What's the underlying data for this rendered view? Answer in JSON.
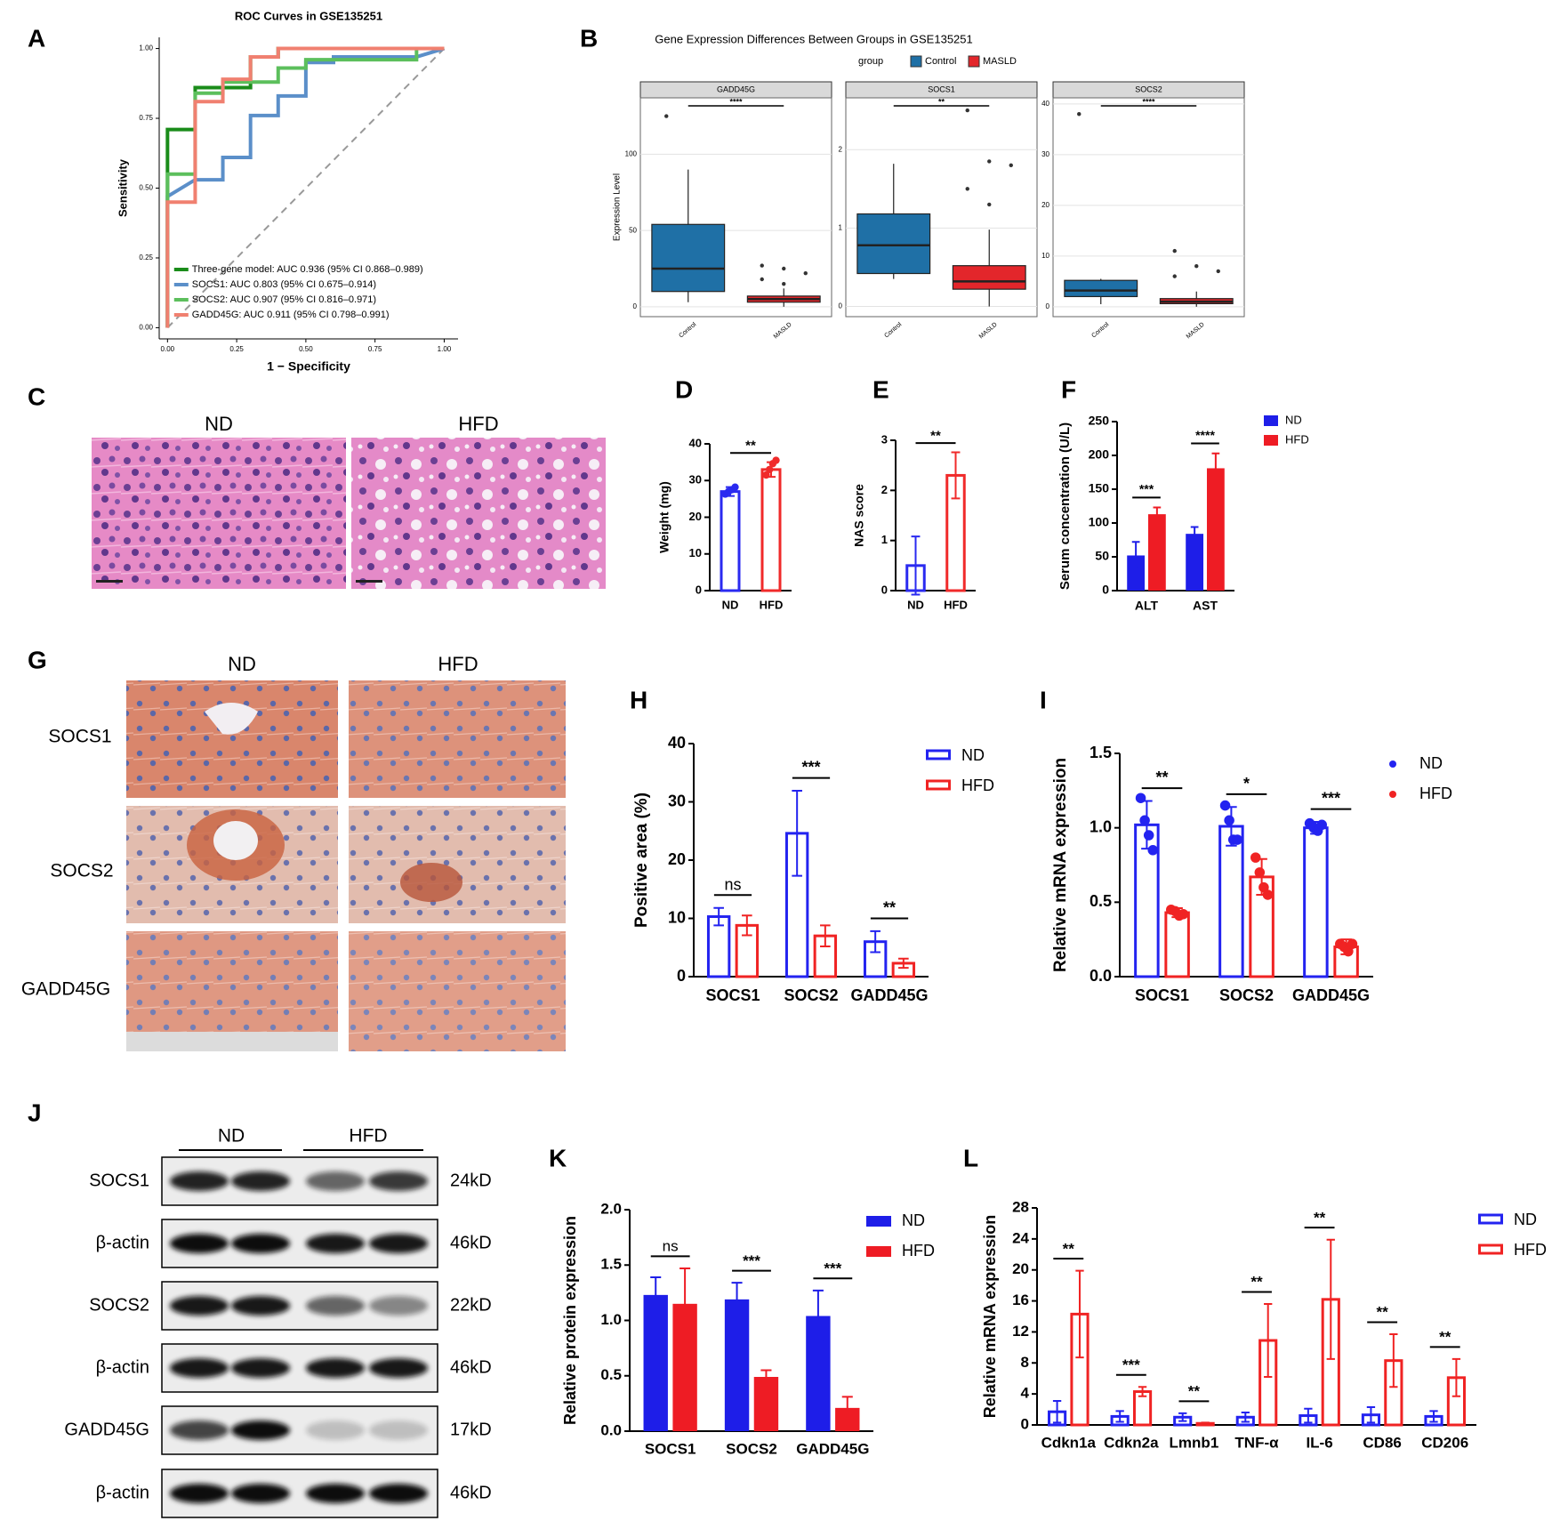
{
  "chart_data": [
    {
      "type": "line",
      "panel": "A",
      "title": "ROC Curves in GSE135251",
      "xlabel": "1 − Specificity",
      "ylabel": "Sensitivity",
      "xlim": [
        -0.03,
        1.05
      ],
      "ylim": [
        -0.04,
        1.04
      ],
      "xticks": [
        {
          "value": 0,
          "label": "0.00"
        },
        {
          "value": 0.25,
          "label": "0.25"
        },
        {
          "value": 0.5,
          "label": "0.50"
        },
        {
          "value": 0.75,
          "label": "0.75"
        },
        {
          "value": 1,
          "label": "1.00"
        }
      ],
      "yticks": [
        {
          "value": 0,
          "label": "0.00"
        },
        {
          "value": 0.25,
          "label": "0.25"
        },
        {
          "value": 0.5,
          "label": "0.50"
        },
        {
          "value": 0.75,
          "label": "0.75"
        },
        {
          "value": 1,
          "label": "1.00"
        }
      ],
      "diagonal": true,
      "legend": "lower right",
      "series": [
        {
          "name": "Three-gene model: AUC 0.936 (95% CI 0.868–0.989)",
          "color": "#1a8c1a",
          "x": [
            0,
            0,
            0.1,
            0.1,
            0.3,
            0.3,
            0.4,
            0.4,
            1
          ],
          "values": [
            0,
            0.71,
            0.71,
            0.86,
            0.86,
            0.97,
            0.97,
            1,
            1
          ]
        },
        {
          "name": "SOCS1: AUC 0.803 (95% CI 0.675–0.914)",
          "color": "#5b8fc9",
          "x": [
            0,
            0,
            0.1,
            0.2,
            0.2,
            0.3,
            0.3,
            0.4,
            0.4,
            0.5,
            0.5,
            0.6,
            0.6,
            0.9,
            1
          ],
          "values": [
            0,
            0.47,
            0.53,
            0.53,
            0.61,
            0.61,
            0.76,
            0.76,
            0.83,
            0.83,
            0.95,
            0.95,
            0.97,
            0.97,
            1
          ]
        },
        {
          "name": "SOCS2: AUC 0.907 (95% CI 0.816–0.971)",
          "color": "#5cbf5c",
          "x": [
            0,
            0,
            0.1,
            0.1,
            0.2,
            0.2,
            0.4,
            0.4,
            0.5,
            0.5,
            0.9,
            0.9,
            1
          ],
          "values": [
            0,
            0.55,
            0.55,
            0.84,
            0.84,
            0.88,
            0.88,
            0.93,
            0.93,
            0.96,
            0.96,
            1,
            1
          ]
        },
        {
          "name": "GADD45G: AUC 0.911 (95% CI 0.798–0.991)",
          "color": "#f08070",
          "x": [
            0,
            0,
            0.1,
            0.1,
            0.2,
            0.2,
            0.3,
            0.3,
            0.4,
            0.4,
            1
          ],
          "values": [
            0,
            0.45,
            0.45,
            0.81,
            0.81,
            0.89,
            0.89,
            0.97,
            0.97,
            1,
            1
          ]
        }
      ]
    },
    {
      "type": "box",
      "panel": "B",
      "title": "Gene Expression Differences Between Groups in GSE135251",
      "ylabel": "Expression Level",
      "legend_title": "group",
      "groups": [
        {
          "name": "Control",
          "color": "#1f70a6"
        },
        {
          "name": "MASLD",
          "color": "#e3262b"
        }
      ],
      "facets": [
        {
          "name": "GADD45G",
          "sig": "****",
          "ylim": [
            -6.5,
            137
          ],
          "yticks": [
            0,
            50,
            100
          ],
          "boxes": [
            {
              "min": 3,
              "q1": 10,
              "median": 25,
              "q3": 54,
              "max": 90,
              "outliers": [
                125
              ]
            },
            {
              "min": 0,
              "q1": 3,
              "median": 5,
              "q3": 7,
              "max": 12,
              "outliers": [
                27,
                25,
                22,
                18,
                15
              ]
            }
          ]
        },
        {
          "name": "SOCS1",
          "sig": "**",
          "ylim": [
            -0.13,
            2.66
          ],
          "yticks": [
            0,
            1,
            2
          ],
          "boxes": [
            {
              "min": 0.35,
              "q1": 0.42,
              "median": 0.78,
              "q3": 1.18,
              "max": 1.82,
              "outliers": []
            },
            {
              "min": 0,
              "q1": 0.22,
              "median": 0.32,
              "q3": 0.52,
              "max": 0.98,
              "outliers": [
                2.5,
                1.85,
                1.8,
                1.5,
                1.3
              ]
            }
          ]
        },
        {
          "name": "SOCS2",
          "sig": "****",
          "ylim": [
            -1.96,
            41.2
          ],
          "yticks": [
            0,
            10,
            20,
            30,
            40
          ],
          "boxes": [
            {
              "min": 0.5,
              "q1": 2,
              "median": 3.2,
              "q3": 5.2,
              "max": 5.5,
              "outliers": [
                38
              ]
            },
            {
              "min": 0,
              "q1": 0.6,
              "median": 1,
              "q3": 1.6,
              "max": 3,
              "outliers": [
                11,
                8,
                7,
                6
              ]
            }
          ]
        }
      ]
    },
    {
      "type": "bar",
      "panel": "D",
      "ylabel": "Weight (mg)",
      "categories": [
        "ND",
        "HFD"
      ],
      "values": [
        27,
        33
      ],
      "errors": [
        1.2,
        2.0
      ],
      "colors": [
        "#2a2af0",
        "#f02a2a"
      ],
      "points": [
        [
          26.3,
          27,
          27.5,
          28.2
        ],
        [
          31.5,
          33,
          34.6,
          35.5
        ]
      ],
      "sig": "**",
      "bar_style": "hollow",
      "ylim": [
        0,
        40
      ],
      "yticks": [
        0,
        10,
        20,
        30,
        40
      ]
    },
    {
      "type": "bar",
      "panel": "E",
      "ylabel": "NAS score",
      "categories": [
        "ND",
        "HFD"
      ],
      "values": [
        0.5,
        2.3
      ],
      "errors": [
        0.58,
        0.46
      ],
      "colors": [
        "#2a2af0",
        "#f02a2a"
      ],
      "sig": "**",
      "bar_style": "hollow",
      "ylim": [
        0,
        3
      ],
      "yticks": [
        0,
        1,
        2,
        3
      ]
    },
    {
      "type": "bar",
      "panel": "F",
      "ylabel": "Serum concentration (U/L)",
      "categories": [
        "ALT",
        "AST"
      ],
      "bar_style": "solid",
      "legend": true,
      "series": [
        {
          "name": "ND",
          "color": "#1e1ee8",
          "values": [
            52,
            84
          ],
          "errors": [
            20,
            10
          ]
        },
        {
          "name": "HFD",
          "color": "#ee1c24",
          "values": [
            113,
            181
          ],
          "errors": [
            10,
            22
          ]
        }
      ],
      "sig": [
        "***",
        "****"
      ],
      "ylim": [
        0,
        250
      ],
      "yticks": [
        0,
        50,
        100,
        150,
        200,
        250
      ]
    },
    {
      "type": "bar",
      "panel": "H",
      "ylabel": "Positive area (%)",
      "categories": [
        "SOCS1",
        "SOCS2",
        "GADD45G"
      ],
      "bar_style": "hollow",
      "legend": true,
      "series": [
        {
          "name": "ND",
          "color": "#2323f0",
          "values": [
            10.3,
            24.6,
            6.0
          ],
          "errors": [
            1.5,
            7.3,
            1.8
          ]
        },
        {
          "name": "HFD",
          "color": "#f02323",
          "values": [
            8.8,
            7.0,
            2.3
          ],
          "errors": [
            1.7,
            1.8,
            0.8
          ]
        }
      ],
      "sig": [
        "ns",
        "***",
        "**"
      ],
      "ylim": [
        0,
        40
      ],
      "yticks": [
        0,
        10,
        20,
        30,
        40
      ]
    },
    {
      "type": "bar",
      "panel": "I",
      "ylabel": "Relative mRNA expression",
      "categories": [
        "SOCS1",
        "SOCS2",
        "GADD45G"
      ],
      "bar_style": "hollow",
      "legend": true,
      "legend_marker": "dot",
      "series": [
        {
          "name": "ND",
          "color": "#2323f0",
          "values": [
            1.02,
            1.01,
            1.0
          ],
          "errors": [
            0.16,
            0.13,
            0.04
          ],
          "points": [
            [
              1.2,
              1.05,
              0.95,
              0.85
            ],
            [
              1.15,
              1.05,
              0.92,
              0.92
            ],
            [
              1.03,
              1.0,
              0.98,
              1.02
            ]
          ]
        },
        {
          "name": "HFD",
          "color": "#f02323",
          "values": [
            0.43,
            0.67,
            0.2
          ],
          "errors": [
            0.03,
            0.12,
            0.05
          ],
          "points": [
            [
              0.45,
              0.44,
              0.41,
              0.42
            ],
            [
              0.8,
              0.7,
              0.6,
              0.55
            ],
            [
              0.22,
              0.2,
              0.17,
              0.22
            ]
          ]
        }
      ],
      "sig": [
        "**",
        "*",
        "***"
      ],
      "ylim": [
        0,
        1.5
      ],
      "yticks": [
        {
          "value": 0,
          "label": "0.0"
        },
        {
          "value": 0.5,
          "label": "0.5"
        },
        {
          "value": 1,
          "label": "1.0"
        },
        {
          "value": 1.5,
          "label": "1.5"
        }
      ]
    },
    {
      "type": "bar",
      "panel": "K",
      "ylabel": "Relative protein expression",
      "categories": [
        "SOCS1",
        "SOCS2",
        "GADD45G"
      ],
      "bar_style": "solid",
      "legend": true,
      "series": [
        {
          "name": "ND",
          "color": "#1e1ee8",
          "values": [
            1.23,
            1.19,
            1.04
          ],
          "errors": [
            0.16,
            0.15,
            0.23
          ]
        },
        {
          "name": "HFD",
          "color": "#ee1c24",
          "values": [
            1.15,
            0.49,
            0.21
          ],
          "errors": [
            0.32,
            0.06,
            0.1
          ]
        }
      ],
      "sig": [
        "ns",
        "***",
        "***"
      ],
      "ylim": [
        0,
        2
      ],
      "yticks": [
        {
          "value": 0,
          "label": "0.0"
        },
        {
          "value": 0.5,
          "label": "0.5"
        },
        {
          "value": 1,
          "label": "1.0"
        },
        {
          "value": 1.5,
          "label": "1.5"
        },
        {
          "value": 2,
          "label": "2.0"
        }
      ]
    },
    {
      "type": "bar",
      "panel": "L",
      "ylabel": "Relative mRNA expression",
      "categories": [
        "Cdkn1a",
        "Cdkn2a",
        "Lmnb1",
        "TNF-α",
        "IL-6",
        "CD86",
        "CD206"
      ],
      "bar_style": "hollow",
      "legend": true,
      "series": [
        {
          "name": "ND",
          "color": "#2323f0",
          "values": [
            1.7,
            1.1,
            1.0,
            1.0,
            1.2,
            1.3,
            1.1
          ],
          "errors": [
            1.4,
            0.7,
            0.5,
            0.6,
            0.9,
            1.0,
            0.7
          ]
        },
        {
          "name": "HFD",
          "color": "#f02323",
          "values": [
            14.3,
            4.3,
            0.2,
            10.9,
            16.2,
            8.3,
            6.1
          ],
          "errors": [
            5.6,
            0.6,
            0.1,
            4.7,
            7.7,
            3.4,
            2.4
          ]
        }
      ],
      "sig": [
        "**",
        "***",
        "**",
        "**",
        "**",
        "**",
        "**"
      ],
      "ylim": [
        0,
        28
      ],
      "yticks": [
        0,
        4,
        8,
        12,
        16,
        20,
        24,
        28
      ]
    }
  ],
  "figure": {
    "C": {
      "panel": "C",
      "columns": [
        "ND",
        "HFD"
      ]
    },
    "G": {
      "panel": "G",
      "columns": [
        "ND",
        "HFD"
      ],
      "rows": [
        "SOCS1",
        "SOCS2",
        "GADD45G"
      ]
    },
    "J": {
      "panel": "J",
      "groups": [
        "ND",
        "HFD"
      ],
      "rows": [
        {
          "label": "SOCS1",
          "size": "24kD"
        },
        {
          "label": "β-actin",
          "size": "46kD"
        },
        {
          "label": "SOCS2",
          "size": "22kD"
        },
        {
          "label": "β-actin",
          "size": "46kD"
        },
        {
          "label": "GADD45G",
          "size": "17kD"
        },
        {
          "label": "β-actin",
          "size": "46kD"
        }
      ]
    }
  }
}
